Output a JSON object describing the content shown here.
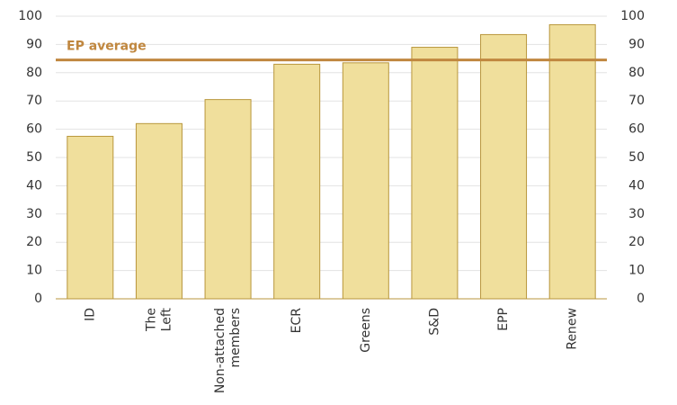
{
  "chart_data": {
    "type": "bar",
    "categories": [
      "ID",
      "The Left",
      "Non-attached members",
      "ECR",
      "Greens",
      "S&D",
      "EPP",
      "Renew"
    ],
    "values": [
      57.5,
      62,
      70.5,
      83,
      83.5,
      89,
      93.5,
      97
    ],
    "color": "#f0df9c",
    "edge_color": "#b8963c",
    "ylim": [
      0,
      100
    ],
    "yticks": [
      0,
      10,
      20,
      30,
      40,
      50,
      60,
      70,
      80,
      90,
      100
    ],
    "y2lim": [
      0,
      100
    ],
    "y2ticks": [
      0,
      10,
      20,
      30,
      40,
      50,
      60,
      70,
      80,
      90,
      100
    ],
    "grid": true,
    "reference_lines": [
      {
        "label": "EP average",
        "value": 84.5,
        "color": "#c0873f"
      }
    ]
  }
}
